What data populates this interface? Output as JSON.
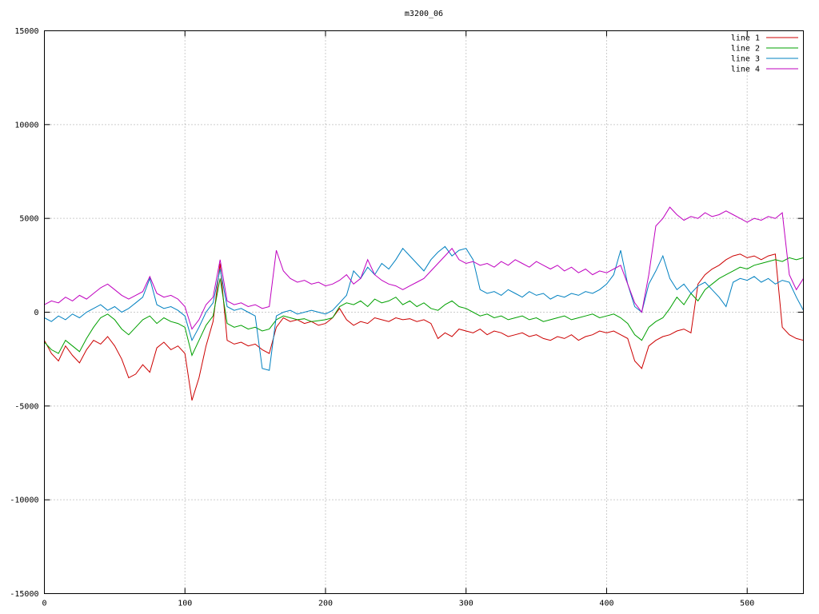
{
  "chart_data": {
    "type": "line",
    "title": "m3200_06",
    "xlabel": "",
    "ylabel": "",
    "xlim": [
      0,
      540
    ],
    "ylim": [
      -15000,
      15000
    ],
    "xticks": [
      0,
      100,
      200,
      300,
      400,
      500
    ],
    "yticks": [
      -15000,
      -10000,
      -5000,
      0,
      5000,
      10000,
      15000
    ],
    "grid": true,
    "grid_style": "dotted",
    "legend_position": "top-right",
    "x_start": 0,
    "x_step": 5,
    "series": [
      {
        "name": "line 1",
        "color": "#cc0000",
        "values": [
          -1500,
          -2200,
          -2600,
          -1800,
          -2300,
          -2700,
          -2000,
          -1500,
          -1700,
          -1300,
          -1800,
          -2500,
          -3500,
          -3300,
          -2800,
          -3200,
          -1900,
          -1600,
          -2000,
          -1800,
          -2200,
          -4700,
          -3500,
          -1800,
          -500,
          2600,
          -1500,
          -1700,
          -1600,
          -1800,
          -1700,
          -2000,
          -2200,
          -800,
          -300,
          -500,
          -400,
          -600,
          -500,
          -700,
          -600,
          -300,
          200,
          -400,
          -700,
          -500,
          -600,
          -300,
          -400,
          -500,
          -300,
          -400,
          -350,
          -500,
          -400,
          -600,
          -1400,
          -1100,
          -1300,
          -900,
          -1000,
          -1100,
          -900,
          -1200,
          -1000,
          -1100,
          -1300,
          -1200,
          -1100,
          -1300,
          -1200,
          -1400,
          -1500,
          -1300,
          -1400,
          -1200,
          -1500,
          -1300,
          -1200,
          -1000,
          -1100,
          -1000,
          -1200,
          -1400,
          -2600,
          -3000,
          -1800,
          -1500,
          -1300,
          -1200,
          -1000,
          -900,
          -1100,
          1500,
          2000,
          2300,
          2500,
          2800,
          3000,
          3100,
          2900,
          3000,
          2800,
          3000,
          3100,
          -800,
          -1200,
          -1400,
          -1500
        ]
      },
      {
        "name": "line 2",
        "color": "#00a000",
        "values": [
          -1600,
          -2000,
          -2200,
          -1500,
          -1800,
          -2100,
          -1400,
          -800,
          -300,
          -100,
          -400,
          -900,
          -1200,
          -800,
          -400,
          -200,
          -600,
          -300,
          -500,
          -600,
          -800,
          -2300,
          -1500,
          -700,
          -200,
          1800,
          -600,
          -800,
          -700,
          -900,
          -800,
          -1000,
          -900,
          -400,
          -200,
          -300,
          -400,
          -350,
          -500,
          -450,
          -400,
          -300,
          300,
          500,
          400,
          600,
          300,
          700,
          500,
          600,
          800,
          400,
          600,
          300,
          500,
          200,
          100,
          400,
          600,
          300,
          200,
          0,
          -200,
          -100,
          -300,
          -200,
          -400,
          -300,
          -200,
          -400,
          -300,
          -500,
          -400,
          -300,
          -200,
          -400,
          -300,
          -200,
          -100,
          -300,
          -200,
          -100,
          -300,
          -600,
          -1200,
          -1500,
          -800,
          -500,
          -300,
          200,
          800,
          400,
          1000,
          600,
          1200,
          1500,
          1800,
          2000,
          2200,
          2400,
          2300,
          2500,
          2600,
          2700,
          2800,
          2700,
          2900,
          2800,
          2900
        ]
      },
      {
        "name": "line 3",
        "color": "#0080c0",
        "values": [
          -300,
          -500,
          -200,
          -400,
          -100,
          -300,
          0,
          200,
          400,
          100,
          300,
          0,
          200,
          500,
          800,
          1800,
          400,
          200,
          300,
          100,
          -200,
          -1500,
          -800,
          0,
          500,
          2300,
          300,
          100,
          200,
          0,
          -200,
          -3000,
          -3100,
          -200,
          0,
          100,
          -100,
          0,
          100,
          0,
          -100,
          100,
          500,
          900,
          2200,
          1800,
          2400,
          2000,
          2600,
          2300,
          2800,
          3400,
          3000,
          2600,
          2200,
          2800,
          3200,
          3500,
          3000,
          3300,
          3400,
          2800,
          1200,
          1000,
          1100,
          900,
          1200,
          1000,
          800,
          1100,
          900,
          1000,
          700,
          900,
          800,
          1000,
          900,
          1100,
          1000,
          1200,
          1500,
          2000,
          3300,
          1500,
          300,
          0,
          1500,
          2200,
          3000,
          1800,
          1200,
          1500,
          1000,
          1400,
          1600,
          1200,
          800,
          300,
          1600,
          1800,
          1700,
          1900,
          1600,
          1800,
          1500,
          1700,
          1600,
          800,
          100
        ]
      },
      {
        "name": "line 4",
        "color": "#bf00bf",
        "values": [
          400,
          600,
          500,
          800,
          600,
          900,
          700,
          1000,
          1300,
          1500,
          1200,
          900,
          700,
          900,
          1100,
          1900,
          1000,
          800,
          900,
          700,
          300,
          -900,
          -400,
          400,
          800,
          2800,
          600,
          400,
          500,
          300,
          400,
          200,
          300,
          3300,
          2200,
          1800,
          1600,
          1700,
          1500,
          1600,
          1400,
          1500,
          1700,
          2000,
          1500,
          1800,
          2800,
          2000,
          1700,
          1500,
          1400,
          1200,
          1400,
          1600,
          1800,
          2200,
          2600,
          3000,
          3400,
          2800,
          2600,
          2700,
          2500,
          2600,
          2400,
          2700,
          2500,
          2800,
          2600,
          2400,
          2700,
          2500,
          2300,
          2500,
          2200,
          2400,
          2100,
          2300,
          2000,
          2200,
          2100,
          2300,
          2500,
          1500,
          500,
          0,
          2000,
          4600,
          5000,
          5600,
          5200,
          4900,
          5100,
          5000,
          5300,
          5100,
          5200,
          5400,
          5200,
          5000,
          4800,
          5000,
          4900,
          5100,
          5000,
          5300,
          2000,
          1200,
          1800
        ]
      }
    ]
  }
}
